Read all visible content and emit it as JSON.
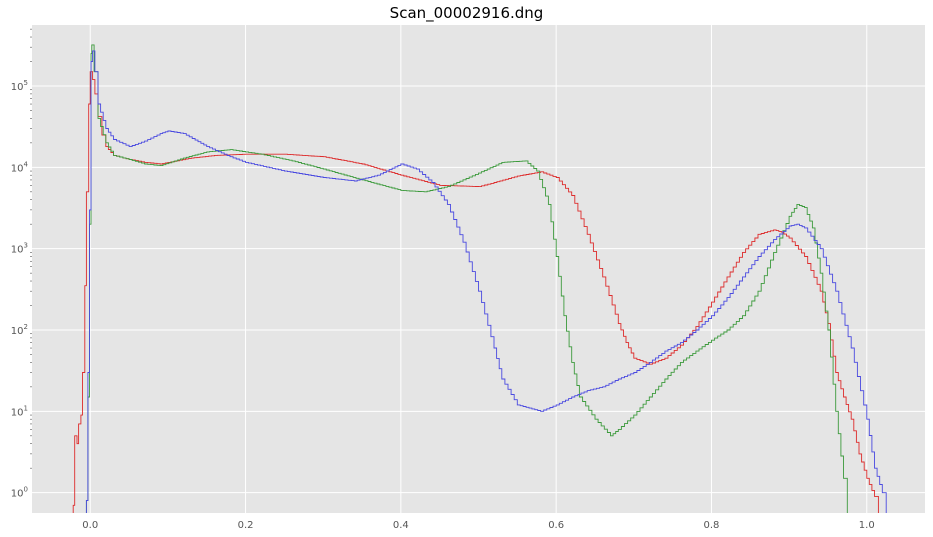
{
  "chart_data": {
    "type": "line",
    "subtype": "step-histogram",
    "title": "Scan_00002916.dng",
    "xlabel": "",
    "ylabel": "",
    "xlim": [
      -0.075,
      1.075
    ],
    "ylim_log10": [
      -0.25,
      5.75
    ],
    "yscale": "log",
    "grid": true,
    "style": {
      "background": "#e5e5e5",
      "grid_color": "#ffffff"
    },
    "x_ticks": [
      {
        "value": 0.0,
        "label": "0.0"
      },
      {
        "value": 0.2,
        "label": "0.2"
      },
      {
        "value": 0.4,
        "label": "0.4"
      },
      {
        "value": 0.6,
        "label": "0.6"
      },
      {
        "value": 0.8,
        "label": "0.8"
      },
      {
        "value": 1.0,
        "label": "1.0"
      }
    ],
    "y_ticks": [
      {
        "exp": 0,
        "base": "10",
        "sup": "0"
      },
      {
        "exp": 1,
        "base": "10",
        "sup": "1"
      },
      {
        "exp": 2,
        "base": "10",
        "sup": "2"
      },
      {
        "exp": 3,
        "base": "10",
        "sup": "3"
      },
      {
        "exp": 4,
        "base": "10",
        "sup": "4"
      },
      {
        "exp": 5,
        "base": "10",
        "sup": "5"
      }
    ],
    "series": [
      {
        "color": "#dd2c2c",
        "points": [
          [
            -0.022,
            0.7
          ],
          [
            -0.02,
            5
          ],
          [
            -0.017,
            4
          ],
          [
            -0.015,
            7
          ],
          [
            -0.012,
            9
          ],
          [
            -0.01,
            30
          ],
          [
            -0.007,
            350
          ],
          [
            -0.005,
            5000
          ],
          [
            -0.002,
            60000
          ],
          [
            0.0,
            150000
          ],
          [
            0.003,
            120000
          ],
          [
            0.006,
            80000
          ],
          [
            0.01,
            42000
          ],
          [
            0.015,
            25000
          ],
          [
            0.02,
            18000
          ],
          [
            0.03,
            14000
          ],
          [
            0.05,
            12500
          ],
          [
            0.07,
            11500
          ],
          [
            0.09,
            11000
          ],
          [
            0.1,
            11500
          ],
          [
            0.13,
            13000
          ],
          [
            0.16,
            14000
          ],
          [
            0.2,
            14500
          ],
          [
            0.25,
            14500
          ],
          [
            0.3,
            13500
          ],
          [
            0.35,
            11000
          ],
          [
            0.4,
            8000
          ],
          [
            0.45,
            6000
          ],
          [
            0.5,
            5800
          ],
          [
            0.52,
            6500
          ],
          [
            0.55,
            7800
          ],
          [
            0.58,
            8800
          ],
          [
            0.6,
            7500
          ],
          [
            0.62,
            4500
          ],
          [
            0.64,
            1500
          ],
          [
            0.66,
            450
          ],
          [
            0.68,
            120
          ],
          [
            0.69,
            70
          ],
          [
            0.7,
            45
          ],
          [
            0.72,
            38
          ],
          [
            0.74,
            45
          ],
          [
            0.76,
            65
          ],
          [
            0.78,
            110
          ],
          [
            0.8,
            220
          ],
          [
            0.82,
            450
          ],
          [
            0.84,
            900
          ],
          [
            0.86,
            1500
          ],
          [
            0.88,
            1700
          ],
          [
            0.89,
            1600
          ],
          [
            0.9,
            1350
          ],
          [
            0.92,
            800
          ],
          [
            0.94,
            300
          ],
          [
            0.95,
            120
          ],
          [
            0.96,
            30
          ],
          [
            0.97,
            15
          ],
          [
            0.98,
            8
          ],
          [
            0.99,
            3
          ],
          [
            1.0,
            1.5
          ],
          [
            1.01,
            0.9
          ],
          [
            1.015,
            0.6
          ]
        ]
      },
      {
        "color": "#3c9a3c",
        "points": [
          [
            -0.005,
            0.8
          ],
          [
            -0.003,
            15
          ],
          [
            -0.001,
            2000
          ],
          [
            0.001,
            250000
          ],
          [
            0.002,
            320000
          ],
          [
            0.005,
            150000
          ],
          [
            0.01,
            40000
          ],
          [
            0.02,
            20000
          ],
          [
            0.03,
            14000
          ],
          [
            0.05,
            12500
          ],
          [
            0.07,
            11000
          ],
          [
            0.09,
            10500
          ],
          [
            0.12,
            13000
          ],
          [
            0.15,
            15500
          ],
          [
            0.18,
            16500
          ],
          [
            0.22,
            14500
          ],
          [
            0.26,
            12000
          ],
          [
            0.3,
            9500
          ],
          [
            0.35,
            7000
          ],
          [
            0.4,
            5200
          ],
          [
            0.43,
            5000
          ],
          [
            0.46,
            5800
          ],
          [
            0.5,
            8500
          ],
          [
            0.53,
            11500
          ],
          [
            0.56,
            12000
          ],
          [
            0.575,
            9000
          ],
          [
            0.59,
            3500
          ],
          [
            0.6,
            800
          ],
          [
            0.61,
            150
          ],
          [
            0.62,
            40
          ],
          [
            0.63,
            15
          ],
          [
            0.65,
            8
          ],
          [
            0.67,
            5
          ],
          [
            0.68,
            6
          ],
          [
            0.7,
            9
          ],
          [
            0.72,
            15
          ],
          [
            0.74,
            25
          ],
          [
            0.76,
            40
          ],
          [
            0.78,
            55
          ],
          [
            0.8,
            75
          ],
          [
            0.82,
            100
          ],
          [
            0.84,
            150
          ],
          [
            0.86,
            300
          ],
          [
            0.88,
            900
          ],
          [
            0.9,
            2500
          ],
          [
            0.91,
            3500
          ],
          [
            0.92,
            3200
          ],
          [
            0.93,
            1800
          ],
          [
            0.94,
            500
          ],
          [
            0.95,
            100
          ],
          [
            0.96,
            10
          ],
          [
            0.97,
            1.5
          ],
          [
            0.975,
            0.7
          ]
        ]
      },
      {
        "color": "#4a4ae0",
        "points": [
          [
            -0.005,
            0.8
          ],
          [
            -0.003,
            30
          ],
          [
            -0.001,
            3000
          ],
          [
            0.001,
            200000
          ],
          [
            0.003,
            270000
          ],
          [
            0.006,
            150000
          ],
          [
            0.01,
            60000
          ],
          [
            0.02,
            30000
          ],
          [
            0.03,
            22000
          ],
          [
            0.05,
            18000
          ],
          [
            0.07,
            21000
          ],
          [
            0.09,
            26000
          ],
          [
            0.1,
            28000
          ],
          [
            0.12,
            26000
          ],
          [
            0.15,
            18000
          ],
          [
            0.18,
            13500
          ],
          [
            0.2,
            11500
          ],
          [
            0.25,
            9000
          ],
          [
            0.3,
            7500
          ],
          [
            0.34,
            6800
          ],
          [
            0.37,
            8000
          ],
          [
            0.4,
            11000
          ],
          [
            0.42,
            9500
          ],
          [
            0.44,
            6500
          ],
          [
            0.46,
            3500
          ],
          [
            0.48,
            1200
          ],
          [
            0.5,
            300
          ],
          [
            0.52,
            60
          ],
          [
            0.53,
            25
          ],
          [
            0.55,
            12
          ],
          [
            0.58,
            10
          ],
          [
            0.6,
            12
          ],
          [
            0.62,
            15
          ],
          [
            0.64,
            18
          ],
          [
            0.66,
            20
          ],
          [
            0.68,
            25
          ],
          [
            0.7,
            30
          ],
          [
            0.72,
            40
          ],
          [
            0.74,
            55
          ],
          [
            0.76,
            70
          ],
          [
            0.78,
            100
          ],
          [
            0.8,
            150
          ],
          [
            0.82,
            250
          ],
          [
            0.84,
            450
          ],
          [
            0.86,
            800
          ],
          [
            0.88,
            1300
          ],
          [
            0.9,
            1900
          ],
          [
            0.91,
            2000
          ],
          [
            0.92,
            1800
          ],
          [
            0.94,
            1000
          ],
          [
            0.96,
            300
          ],
          [
            0.98,
            60
          ],
          [
            1.0,
            8
          ],
          [
            1.01,
            2
          ],
          [
            1.02,
            1
          ],
          [
            1.025,
            0.6
          ]
        ]
      }
    ]
  }
}
